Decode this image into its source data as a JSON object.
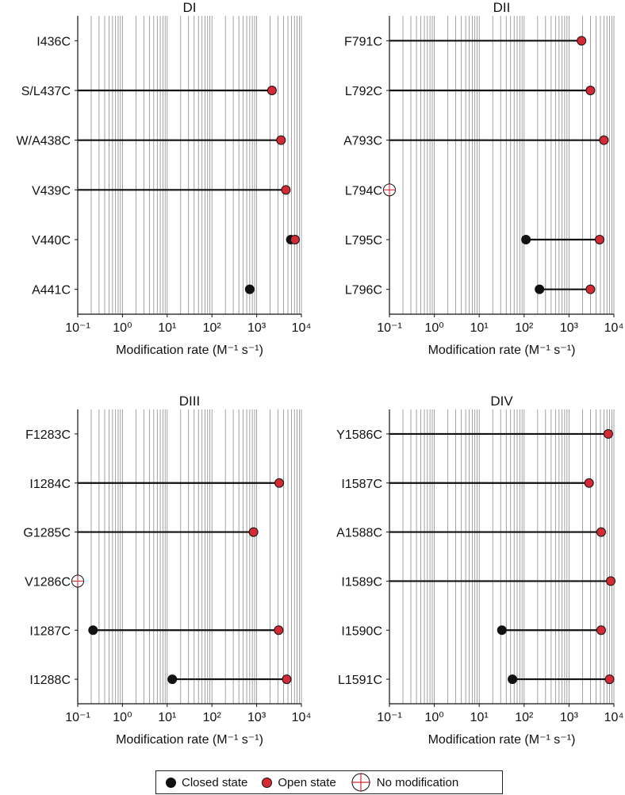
{
  "colors": {
    "closed": "#111111",
    "open": "#d42a36",
    "line": "#111111",
    "grid": "#8a8a8a"
  },
  "x_axis_label": "Modification rate (M⁻¹ s⁻¹)",
  "x_tick_labels": [
    "10⁻¹",
    "10⁰",
    "10¹",
    "10²",
    "10³",
    "10⁴"
  ],
  "legend": {
    "closed": "Closed state",
    "open": "Open state",
    "none": "No modification"
  },
  "chart_data": [
    {
      "type": "scatter",
      "title": "DI",
      "xlabel": "Modification rate (M⁻¹ s⁻¹)",
      "xscale": "log",
      "xlim": [
        0.1,
        10000
      ],
      "grid": true,
      "rows": [
        {
          "label": "I436C",
          "closed": null,
          "open": null,
          "no_modification": false
        },
        {
          "label": "S/L437C",
          "closed": 0.1,
          "open": 2200,
          "no_modification": false
        },
        {
          "label": "W/A438C",
          "closed": 0.1,
          "open": 3500,
          "no_modification": false
        },
        {
          "label": "V439C",
          "closed": 0.1,
          "open": 4500,
          "no_modification": false
        },
        {
          "label": "V440C",
          "closed": 5800,
          "open": 7200,
          "no_modification": false
        },
        {
          "label": "A441C",
          "closed": 700,
          "open": null,
          "no_modification": false
        }
      ]
    },
    {
      "type": "scatter",
      "title": "DII",
      "xlabel": "Modification rate (M⁻¹ s⁻¹)",
      "xscale": "log",
      "xlim": [
        0.1,
        10000
      ],
      "grid": true,
      "rows": [
        {
          "label": "F791C",
          "closed": 0.1,
          "open": 1900,
          "no_modification": false
        },
        {
          "label": "L792C",
          "closed": 0.1,
          "open": 3000,
          "no_modification": false
        },
        {
          "label": "A793C",
          "closed": 0.1,
          "open": 6000,
          "no_modification": false
        },
        {
          "label": "L794C",
          "closed": null,
          "open": null,
          "no_modification": true
        },
        {
          "label": "L795C",
          "closed": 110,
          "open": 4800,
          "no_modification": false
        },
        {
          "label": "L796C",
          "closed": 220,
          "open": 3000,
          "no_modification": false
        }
      ]
    },
    {
      "type": "scatter",
      "title": "DIII",
      "xlabel": "Modification rate (M⁻¹ s⁻¹)",
      "xscale": "log",
      "xlim": [
        0.1,
        10000
      ],
      "grid": true,
      "rows": [
        {
          "label": "F1283C",
          "closed": null,
          "open": null,
          "no_modification": false
        },
        {
          "label": "I1284C",
          "closed": 0.1,
          "open": 3200,
          "no_modification": false
        },
        {
          "label": "G1285C",
          "closed": 0.1,
          "open": 850,
          "no_modification": false
        },
        {
          "label": "V1286C",
          "closed": null,
          "open": null,
          "no_modification": true
        },
        {
          "label": "I1287C",
          "closed": 0.22,
          "open": 3100,
          "no_modification": false
        },
        {
          "label": "I1288C",
          "closed": 13,
          "open": 4700,
          "no_modification": false
        }
      ]
    },
    {
      "type": "scatter",
      "title": "DIV",
      "xlabel": "Modification rate (M⁻¹ s⁻¹)",
      "xscale": "log",
      "xlim": [
        0.1,
        10000
      ],
      "grid": true,
      "rows": [
        {
          "label": "Y1586C",
          "closed": 0.1,
          "open": 7500,
          "no_modification": false
        },
        {
          "label": "I1587C",
          "closed": 0.1,
          "open": 2800,
          "no_modification": false
        },
        {
          "label": "A1588C",
          "closed": 0.1,
          "open": 5200,
          "no_modification": false
        },
        {
          "label": "I1589C",
          "closed": 0.1,
          "open": 8500,
          "no_modification": false
        },
        {
          "label": "I1590C",
          "closed": 32,
          "open": 5200,
          "no_modification": false
        },
        {
          "label": "L1591C",
          "closed": 55,
          "open": 8000,
          "no_modification": false
        }
      ]
    }
  ]
}
